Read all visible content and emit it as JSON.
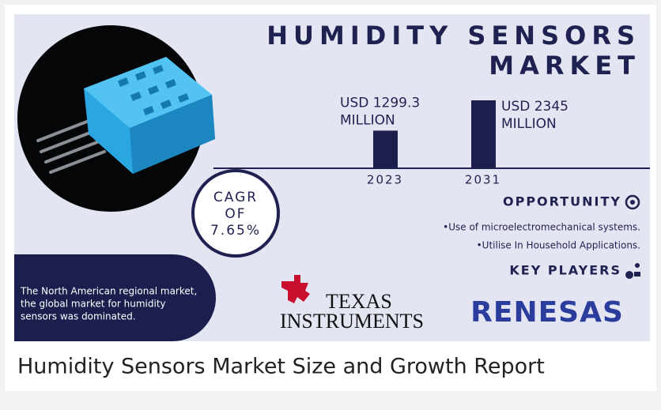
{
  "title": [
    "HUMIDITY SENSORS",
    "MARKET"
  ],
  "bars": [
    {
      "label": [
        "USD 1299.3",
        "MILLION"
      ],
      "year": "2023",
      "value": 1299.3
    },
    {
      "label": [
        "USD 2345",
        "MILLION"
      ],
      "year": "2031",
      "value": 2345
    }
  ],
  "cagr": [
    "CAGR",
    "OF",
    "7.65%"
  ],
  "opportunity": {
    "heading": "OPPORTUNITY",
    "items": [
      "•Use of microelectromechanical systems.",
      "•Utilise In Household Applications."
    ]
  },
  "key_players": {
    "heading": "KEY PLAYERS",
    "logos": [
      [
        "TEXAS",
        "INSTRUMENTS"
      ],
      "RENESAS"
    ]
  },
  "note": [
    "The North American regional market,",
    "the global market for humidity",
    "sensors was dominated."
  ],
  "caption": "Humidity Sensors Market Size and Growth Report"
}
